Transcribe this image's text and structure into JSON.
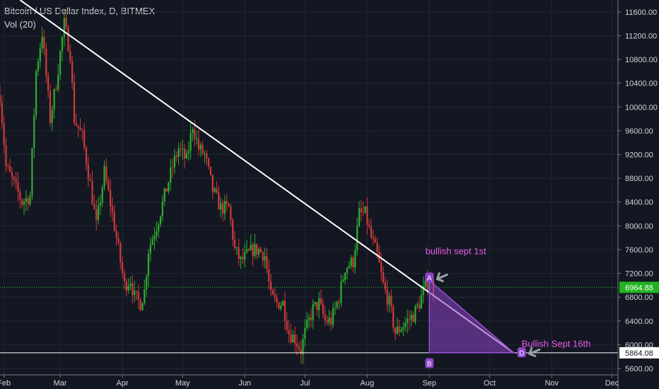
{
  "header": {
    "title": "Bitcoin / US Dollar Index, D, BITMEX",
    "indicator": "Vol (20)"
  },
  "chart_data": {
    "type": "candlestick",
    "ylim": [
      5600,
      11800
    ],
    "y_ticks": [
      5600,
      6000,
      6400,
      6800,
      7200,
      7600,
      8000,
      8400,
      8800,
      9200,
      9600,
      10000,
      10400,
      10800,
      11200,
      11600
    ],
    "x_ticks": [
      "Feb",
      "Mar",
      "Apr",
      "May",
      "Jun",
      "Jul",
      "Aug",
      "Sep",
      "Oct",
      "Nov",
      "Dec"
    ],
    "x_tick_positions": [
      3,
      31,
      62,
      92,
      123,
      153,
      184,
      215,
      245,
      276,
      306
    ],
    "x_range": [
      1,
      309
    ],
    "price_label": "6964.88",
    "support_label": "5864.08",
    "current_price": 6964.88,
    "support_price": 5864.08,
    "trendline": {
      "start": {
        "day": 11,
        "price": 11800
      },
      "end": {
        "day": 257,
        "price": 5864.08
      }
    },
    "triangle": [
      {
        "day": 215,
        "price": 7080
      },
      {
        "day": 215,
        "price": 5864.08
      },
      {
        "day": 257,
        "price": 5864.08
      }
    ],
    "annotations": [
      {
        "text": "bullish sept 1st",
        "day": 213,
        "price": 7520
      },
      {
        "text": "Bullish Sept 16th",
        "day": 261,
        "price": 5960
      }
    ],
    "markers": [
      {
        "label": "A",
        "day": 215,
        "price": 7130
      },
      {
        "label": "B",
        "day": 215,
        "price": 5690
      },
      {
        "label": "D",
        "day": 261,
        "price": 5870
      }
    ],
    "anchors": [
      {
        "day": 1,
        "price": 10200
      },
      {
        "day": 4,
        "price": 9000
      },
      {
        "day": 8,
        "price": 8700
      },
      {
        "day": 12,
        "price": 8400
      },
      {
        "day": 16,
        "price": 8500
      },
      {
        "day": 19,
        "price": 10600
      },
      {
        "day": 22,
        "price": 11250
      },
      {
        "day": 26,
        "price": 9800
      },
      {
        "day": 29,
        "price": 10400
      },
      {
        "day": 33,
        "price": 11400
      },
      {
        "day": 36,
        "price": 10900
      },
      {
        "day": 38,
        "price": 9800
      },
      {
        "day": 42,
        "price": 9500
      },
      {
        "day": 46,
        "price": 8700
      },
      {
        "day": 49,
        "price": 8000
      },
      {
        "day": 53,
        "price": 8900
      },
      {
        "day": 57,
        "price": 8200
      },
      {
        "day": 60,
        "price": 7600
      },
      {
        "day": 63,
        "price": 7000
      },
      {
        "day": 66,
        "price": 7100
      },
      {
        "day": 68,
        "price": 6800
      },
      {
        "day": 71,
        "price": 6700
      },
      {
        "day": 73,
        "price": 6900
      },
      {
        "day": 75,
        "price": 7600
      },
      {
        "day": 79,
        "price": 8000
      },
      {
        "day": 83,
        "price": 8500
      },
      {
        "day": 87,
        "price": 9000
      },
      {
        "day": 90,
        "price": 9300
      },
      {
        "day": 94,
        "price": 9100
      },
      {
        "day": 97,
        "price": 9700
      },
      {
        "day": 100,
        "price": 9300
      },
      {
        "day": 103,
        "price": 9200
      },
      {
        "day": 107,
        "price": 8600
      },
      {
        "day": 111,
        "price": 8300
      },
      {
        "day": 115,
        "price": 8300
      },
      {
        "day": 118,
        "price": 7600
      },
      {
        "day": 121,
        "price": 7400
      },
      {
        "day": 124,
        "price": 7500
      },
      {
        "day": 127,
        "price": 7600
      },
      {
        "day": 130,
        "price": 7600
      },
      {
        "day": 133,
        "price": 7500
      },
      {
        "day": 136,
        "price": 6800
      },
      {
        "day": 139,
        "price": 6700
      },
      {
        "day": 142,
        "price": 6700
      },
      {
        "day": 145,
        "price": 6200
      },
      {
        "day": 148,
        "price": 6100
      },
      {
        "day": 151,
        "price": 5900
      },
      {
        "day": 153,
        "price": 6200
      },
      {
        "day": 157,
        "price": 6600
      },
      {
        "day": 160,
        "price": 6700
      },
      {
        "day": 163,
        "price": 6400
      },
      {
        "day": 166,
        "price": 6400
      },
      {
        "day": 170,
        "price": 6800
      },
      {
        "day": 173,
        "price": 7300
      },
      {
        "day": 177,
        "price": 7400
      },
      {
        "day": 180,
        "price": 8200
      },
      {
        "day": 183,
        "price": 8200
      },
      {
        "day": 186,
        "price": 7800
      },
      {
        "day": 189,
        "price": 7500
      },
      {
        "day": 192,
        "price": 7000
      },
      {
        "day": 195,
        "price": 6700
      },
      {
        "day": 198,
        "price": 6200
      },
      {
        "day": 201,
        "price": 6300
      },
      {
        "day": 204,
        "price": 6400
      },
      {
        "day": 207,
        "price": 6500
      },
      {
        "day": 210,
        "price": 6700
      },
      {
        "day": 212,
        "price": 6900
      },
      {
        "day": 215,
        "price": 7100
      },
      {
        "day": 217,
        "price": 6950
      }
    ]
  }
}
